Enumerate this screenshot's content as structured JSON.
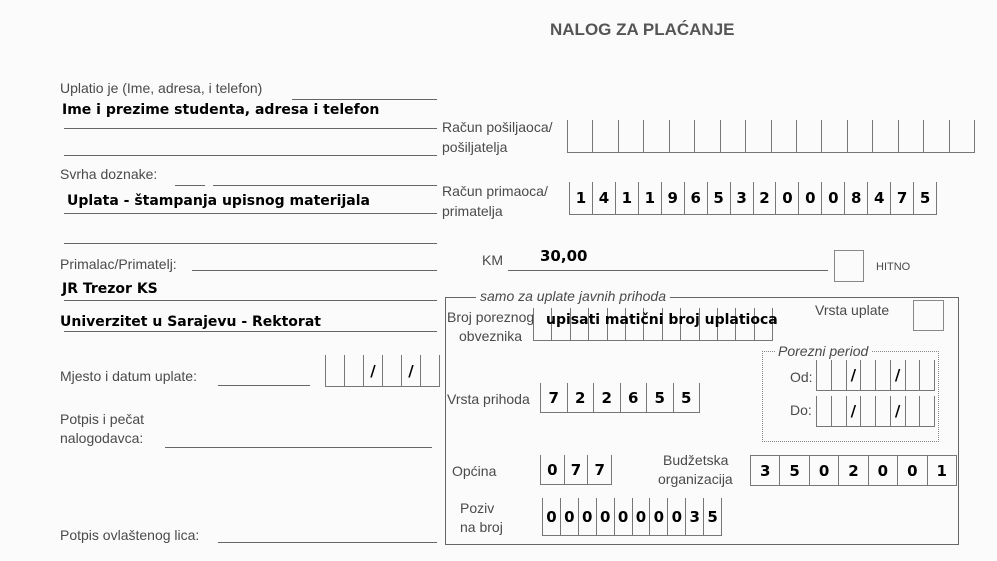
{
  "title": "NALOG ZA PLAĆANJE",
  "left": {
    "payer_label": "Uplatio je (Ime, adresa, i telefon)",
    "payer_value": "Ime i prezime studenta, adresa i telefon",
    "purpose_label": "Svrha doznake:",
    "purpose_value": "Uplata - štampanja upisnog materijala",
    "recipient_label": "Primalac/Primatelj:",
    "recipient_value_1": "JR Trezor KS",
    "recipient_value_2": "Univerzitet u Sarajevu - Rektorat",
    "place_date_label": "Mjesto i datum uplate:",
    "signature_label_1": "Potpis i pečat",
    "signature_label_2": "nalogodavca:",
    "authorized_label": "Potpis ovlaštenog lica:"
  },
  "right": {
    "sender_account_label_1": "Račun pošiljaoca/",
    "sender_account_label_2": "pošiljatelja",
    "recipient_account_label_1": "Račun primaoca/",
    "recipient_account_label_2": "primatelja",
    "recipient_account_digits": [
      "1",
      "4",
      "1",
      "1",
      "9",
      "6",
      "5",
      "3",
      "2",
      "0",
      "0",
      "0",
      "8",
      "4",
      "7",
      "5"
    ],
    "currency_label": "KM",
    "amount": "30,00",
    "urgent_label": "HITNO"
  },
  "public": {
    "legend": "samo za uplate javnih prihoda",
    "taxpayer_label_1": "Broj poreznog",
    "taxpayer_label_2": "obveznika",
    "taxpayer_value": "upisati matični broj uplatioca",
    "payment_type_label": "Vrsta uplate",
    "tax_period_label": "Porezni period",
    "from_label": "Od:",
    "to_label": "Do:",
    "revenue_type_label": "Vrsta prihoda",
    "revenue_type_digits": [
      "7",
      "2",
      "2",
      "6",
      "5",
      "5"
    ],
    "municipality_label": "Općina",
    "municipality_digits": [
      "0",
      "7",
      "7"
    ],
    "budget_org_label_1": "Budžetska",
    "budget_org_label_2": "organizacija",
    "budget_org_digits": [
      "3",
      "5",
      "0",
      "2",
      "0",
      "0",
      "1"
    ],
    "reference_label_1": "Poziv",
    "reference_label_2": "na broj",
    "reference_digits": [
      "0",
      "0",
      "0",
      "0",
      "0",
      "0",
      "0",
      "0",
      "3",
      "5"
    ],
    "slash": "/"
  }
}
